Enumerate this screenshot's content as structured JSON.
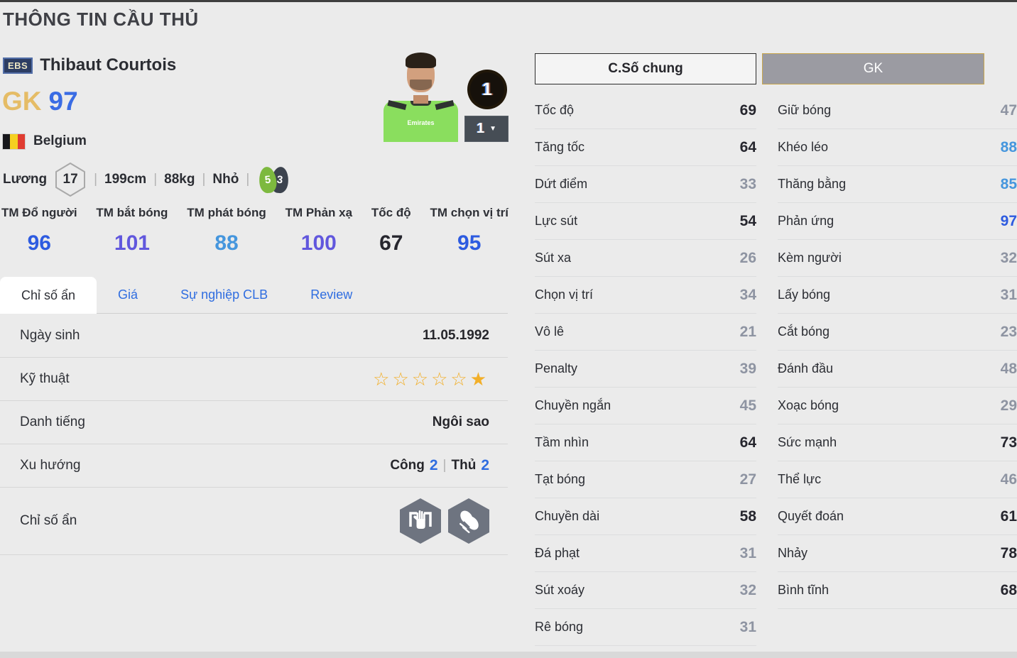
{
  "page": {
    "title": "THÔNG TIN CẦU THỦ"
  },
  "player": {
    "badge": "EBS",
    "name": "Thibaut Courtois",
    "position": "GK",
    "rating": "97",
    "nation": "Belgium",
    "salary_label": "Lương",
    "salary": "17",
    "height": "199cm",
    "weight": "88kg",
    "body_type": "Nhỏ",
    "foot_left": "5",
    "foot_right": "3",
    "upgrade_level": "1",
    "level_select_value": "1"
  },
  "top_stats": [
    {
      "label": "TM Đổ người",
      "value": 96
    },
    {
      "label": "TM bắt bóng",
      "value": 101
    },
    {
      "label": "TM phát bóng",
      "value": 88
    },
    {
      "label": "TM Phản xạ",
      "value": 100
    },
    {
      "label": "Tốc độ",
      "value": 67
    },
    {
      "label": "TM chọn vị trí",
      "value": 95
    }
  ],
  "tabs": [
    {
      "label": "Chỉ số ẩn",
      "active": true
    },
    {
      "label": "Giá",
      "active": false
    },
    {
      "label": "Sự nghiệp CLB",
      "active": false
    },
    {
      "label": "Review",
      "active": false
    }
  ],
  "info_rows": [
    {
      "type": "text",
      "label": "Ngày sinh",
      "value": "11.05.1992"
    },
    {
      "type": "stars",
      "label": "Kỹ thuật",
      "stars_empty": 5,
      "stars_filled": 1
    },
    {
      "type": "text",
      "label": "Danh tiếng",
      "value": "Ngôi sao"
    },
    {
      "type": "tendency",
      "label": "Xu hướng",
      "attack_label": "Công",
      "attack": "2",
      "defense_label": "Thủ",
      "defense": "2"
    },
    {
      "type": "icons",
      "label": "Chỉ số ẩn",
      "icons": [
        "goalkeeper-catch-icon",
        "goalkeeper-gloves-icon"
      ]
    }
  ],
  "stat_buttons": {
    "general": "C.Số chung",
    "gk": "GK"
  },
  "stats_left": [
    {
      "label": "Tốc độ",
      "value": 69
    },
    {
      "label": "Tăng tốc",
      "value": 64
    },
    {
      "label": "Dứt điểm",
      "value": 33
    },
    {
      "label": "Lực sút",
      "value": 54
    },
    {
      "label": "Sút xa",
      "value": 26
    },
    {
      "label": "Chọn vị trí",
      "value": 34
    },
    {
      "label": "Vô lê",
      "value": 21
    },
    {
      "label": "Penalty",
      "value": 39
    },
    {
      "label": "Chuyền ngắn",
      "value": 45
    },
    {
      "label": "Tầm nhìn",
      "value": 64
    },
    {
      "label": "Tạt bóng",
      "value": 27
    },
    {
      "label": "Chuyền dài",
      "value": 58
    },
    {
      "label": "Đá phạt",
      "value": 31
    },
    {
      "label": "Sút xoáy",
      "value": 32
    },
    {
      "label": "Rê bóng",
      "value": 31
    }
  ],
  "stats_right": [
    {
      "label": "Giữ bóng",
      "value": 47
    },
    {
      "label": "Khéo léo",
      "value": 88
    },
    {
      "label": "Thăng bằng",
      "value": 85
    },
    {
      "label": "Phản ứng",
      "value": 97
    },
    {
      "label": "Kèm người",
      "value": 32
    },
    {
      "label": "Lấy bóng",
      "value": 31
    },
    {
      "label": "Cắt bóng",
      "value": 23
    },
    {
      "label": "Đánh đầu",
      "value": 48
    },
    {
      "label": "Xoạc bóng",
      "value": 29
    },
    {
      "label": "Sức mạnh",
      "value": 73
    },
    {
      "label": "Thể lực",
      "value": 46
    },
    {
      "label": "Quyết đoán",
      "value": 61
    },
    {
      "label": "Nhảy",
      "value": 78
    },
    {
      "label": "Bình tĩnh",
      "value": 68
    }
  ],
  "colors": {
    "value_over_100": "#6157dd",
    "value_90_plus": "#2d5be0",
    "value_80s": "#4596dd",
    "value_normal": "#26262e",
    "value_low": "#8e94a2",
    "accent_gold": "#e5bc66",
    "accent_blue": "#3a6ce4",
    "star_gold": "#f2af29"
  }
}
